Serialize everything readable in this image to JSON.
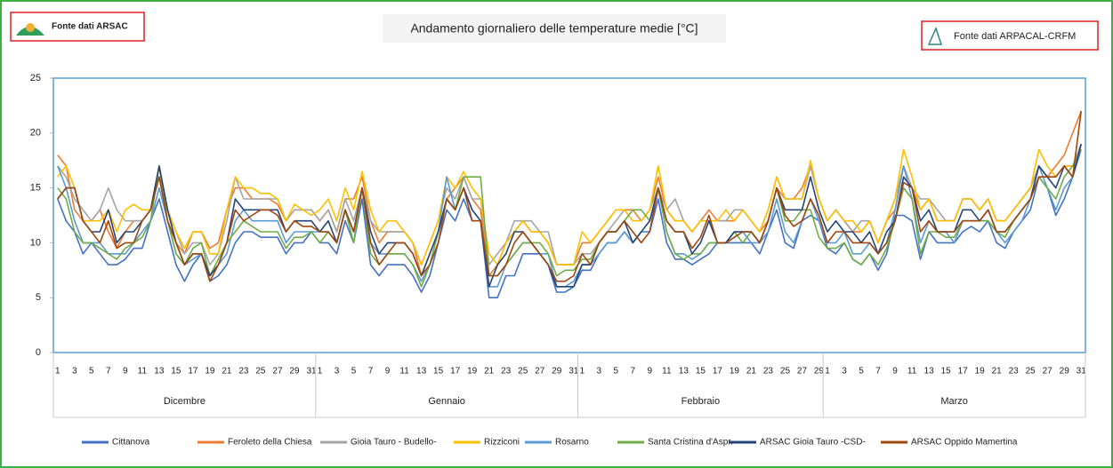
{
  "header": {
    "left_source": "Fonte dati ARSAC",
    "right_source": "Fonte dati ARPACAL-CRFM"
  },
  "chart_data": {
    "type": "line",
    "title": "Andamento giornaliero delle temperature medie [°C]",
    "ylim": [
      0,
      25
    ],
    "yticks": [
      0,
      5,
      10,
      15,
      20,
      25
    ],
    "groups": [
      {
        "name": "Dicembre",
        "categories": [
          "1",
          null,
          "3",
          null,
          "5",
          null,
          "7",
          null,
          "9",
          null,
          "11",
          null,
          "13",
          null,
          "15",
          null,
          "17",
          null,
          "19",
          null,
          "21",
          null,
          "23",
          null,
          "25",
          null,
          "27",
          null,
          "29",
          null,
          "31"
        ]
      },
      {
        "name": "Gennaio",
        "categories": [
          "1",
          null,
          "3",
          null,
          "5",
          null,
          "7",
          null,
          "9",
          null,
          "11",
          null,
          "13",
          null,
          "15",
          null,
          "17",
          null,
          "19",
          null,
          "21",
          null,
          "23",
          null,
          "25",
          null,
          "27",
          null,
          "29",
          null,
          "31"
        ]
      },
      {
        "name": "Febbraio",
        "categories": [
          "1",
          null,
          "3",
          null,
          "5",
          null,
          "7",
          null,
          "9",
          null,
          "11",
          null,
          "13",
          null,
          "15",
          null,
          "17",
          null,
          "19",
          null,
          "21",
          null,
          "23",
          null,
          "25",
          null,
          "27",
          null,
          "29"
        ]
      },
      {
        "name": "Marzo",
        "categories": [
          "1",
          null,
          "3",
          null,
          "5",
          null,
          "7",
          null,
          "9",
          null,
          "11",
          null,
          "13",
          null,
          "15",
          null,
          "17",
          null,
          "19",
          null,
          "21",
          null,
          "23",
          null,
          "25",
          null,
          "27",
          null,
          "29",
          null,
          "31"
        ]
      }
    ],
    "series": [
      {
        "name": "Cittanova",
        "color": "#4472c4",
        "values": [
          14,
          12,
          11,
          9,
          10,
          9,
          8,
          8,
          8.5,
          9.5,
          9.5,
          12,
          14,
          11,
          8,
          6.5,
          8,
          9,
          6.5,
          7,
          8,
          10,
          11,
          11,
          10.5,
          10.5,
          10.5,
          9,
          10,
          10,
          11,
          10,
          10,
          9,
          12,
          10,
          14,
          8,
          7,
          8,
          8,
          8,
          7,
          5.5,
          7,
          10,
          13,
          12,
          14,
          12,
          12,
          5,
          5,
          7,
          7,
          9,
          9,
          9,
          8,
          5.5,
          5.5,
          6,
          7.5,
          7.5,
          9,
          10,
          10,
          11,
          10,
          11,
          11,
          14,
          10,
          8.5,
          8.5,
          8,
          8.5,
          9,
          10,
          10,
          10,
          10,
          10,
          9,
          11,
          13,
          10,
          9.5,
          12,
          12.5,
          12,
          9.5,
          9,
          10,
          8.5,
          8,
          9,
          7.5,
          9,
          12.5,
          12.5,
          12,
          8.5,
          11,
          10,
          10,
          10,
          11,
          11.5,
          11,
          12,
          10,
          9.5,
          11,
          12,
          13,
          16,
          15,
          12.5,
          14,
          16,
          18.5
        ]
      },
      {
        "name": "Feroleto della Chiesa",
        "color": "#ed7d31",
        "values": [
          18,
          17,
          13,
          12,
          12,
          13,
          11,
          9.5,
          11,
          12,
          12,
          13,
          16,
          13,
          10,
          9,
          11,
          11,
          9.5,
          10,
          13,
          15,
          15,
          14,
          14,
          14,
          13.5,
          12,
          13,
          13,
          13,
          12,
          13,
          11,
          14,
          14,
          16,
          12,
          10,
          11,
          11,
          11,
          10,
          7,
          9,
          11,
          14,
          15,
          16,
          14,
          13,
          7,
          8,
          10,
          11,
          12,
          11,
          11,
          10,
          8,
          8,
          8,
          10,
          10,
          11,
          12,
          13,
          13,
          13,
          12,
          13,
          16,
          13,
          12,
          12,
          11,
          12,
          13,
          12,
          12,
          12,
          13,
          12,
          11,
          12,
          15,
          14,
          14,
          15,
          17,
          14,
          12,
          13,
          12,
          11,
          11,
          12,
          10,
          12,
          13,
          17,
          15,
          13,
          14,
          12,
          12,
          12,
          14,
          14,
          13,
          14,
          12,
          12,
          13,
          14,
          15,
          17,
          16,
          17,
          18,
          20,
          22
        ]
      },
      {
        "name": "Gioia Tauro - Budello-",
        "color": "#a5a5a5",
        "values": [
          17,
          16,
          14,
          13,
          12,
          13,
          15,
          13,
          12,
          12,
          12,
          13,
          17,
          13,
          11,
          9,
          10,
          10,
          8,
          9,
          12,
          16,
          14,
          14,
          14,
          14,
          14,
          12,
          13,
          13,
          13,
          12,
          13,
          11,
          14,
          12,
          15,
          12,
          11,
          11,
          11,
          11,
          10,
          8,
          10,
          12,
          15,
          14,
          16,
          14,
          14,
          8,
          9,
          10,
          12,
          12,
          12,
          11,
          11,
          8,
          8,
          8,
          9,
          9,
          10,
          11,
          12,
          13,
          12,
          12,
          13,
          15,
          13,
          14,
          12,
          11,
          12,
          12,
          12,
          12,
          13,
          13,
          12,
          11,
          13,
          16,
          14,
          14,
          14,
          17,
          14,
          12,
          13,
          12,
          11,
          12,
          12,
          10,
          12,
          14,
          17,
          15,
          14,
          14,
          13,
          12,
          12,
          14,
          14,
          13,
          14,
          12,
          12,
          13,
          14,
          15,
          17,
          16,
          16,
          17,
          17,
          19
        ]
      },
      {
        "name": "Rizziconi",
        "color": "#ffc000",
        "values": [
          16,
          17,
          15,
          12,
          12,
          12,
          13,
          11,
          13,
          13.5,
          13,
          13,
          17,
          13,
          11,
          9.5,
          11,
          11,
          9,
          9,
          13,
          16,
          15,
          15,
          14.5,
          14.5,
          14,
          12,
          13.5,
          13,
          12.5,
          13,
          14,
          12,
          15,
          13,
          16.5,
          13,
          11,
          12,
          12,
          11,
          10,
          8,
          10,
          12,
          16,
          15,
          16.5,
          15,
          14,
          9,
          8,
          10,
          11,
          12,
          11,
          11,
          10,
          8,
          8,
          8,
          11,
          10,
          11,
          12,
          13,
          13,
          12,
          12,
          13,
          17,
          13,
          12,
          12,
          11,
          12,
          12,
          12,
          13,
          12,
          13,
          12,
          11,
          13,
          16,
          14,
          14,
          14,
          17.5,
          14,
          12,
          13,
          12,
          12,
          11,
          12,
          10,
          12,
          14,
          18.5,
          16,
          13,
          14,
          12,
          12,
          12,
          14,
          14,
          13,
          14,
          12,
          12,
          13,
          14,
          15,
          18.5,
          17,
          16,
          17,
          17,
          18.5
        ]
      },
      {
        "name": "Rosarno",
        "color": "#5b9bd5",
        "values": [
          17,
          15,
          12,
          10,
          10,
          10,
          9,
          9,
          9,
          10,
          11,
          12,
          15,
          12,
          9,
          8,
          8.5,
          9,
          7,
          8,
          9,
          12,
          13,
          12,
          12,
          12,
          12,
          10,
          11,
          11,
          11,
          11,
          11,
          10,
          13,
          11,
          15,
          10,
          9,
          9,
          9,
          9,
          8,
          6.5,
          8,
          11,
          16,
          13,
          15,
          13,
          12,
          6,
          6,
          8,
          9,
          10,
          10,
          9,
          9,
          6,
          6,
          6.5,
          8,
          8,
          9,
          10,
          10,
          11,
          10,
          11,
          11,
          15,
          11,
          9,
          9,
          8.5,
          9,
          10,
          10,
          10,
          11,
          11,
          10,
          10,
          11,
          14,
          11,
          10,
          12,
          14,
          12,
          10,
          10,
          11,
          9,
          9,
          10,
          9,
          10,
          13,
          17,
          14,
          10,
          12,
          11,
          11,
          10,
          12,
          12,
          12,
          12,
          11,
          10,
          11,
          12,
          14,
          17,
          15,
          13,
          15,
          16,
          19
        ]
      },
      {
        "name": "Santa Cristina d'Aspr.",
        "color": "#70ad47",
        "values": [
          15,
          14,
          11,
          10,
          10,
          9.5,
          9,
          8.5,
          9.5,
          10,
          10.5,
          12,
          17,
          12,
          9,
          8,
          9.5,
          10,
          7,
          8.5,
          10,
          11,
          12,
          11.5,
          11,
          11,
          11,
          9.5,
          10.5,
          10.5,
          11,
          10,
          11,
          10,
          13,
          10,
          15,
          9,
          8,
          9,
          9,
          9,
          8,
          6,
          8,
          11,
          14,
          13,
          16,
          16,
          16,
          7,
          7,
          8,
          9,
          10,
          10,
          10,
          9,
          7,
          7.5,
          7.5,
          8.5,
          8.5,
          10,
          11,
          11,
          12,
          13,
          13,
          12,
          15,
          11,
          9,
          8.5,
          9,
          9,
          10,
          10,
          10,
          11,
          10,
          11,
          10,
          12,
          15,
          12,
          12,
          13,
          13,
          10.5,
          9.5,
          9.5,
          10,
          8.5,
          8,
          9,
          8,
          9.5,
          12,
          15,
          14,
          9,
          11,
          11,
          10.5,
          10.5,
          12,
          12,
          12,
          12,
          11,
          10.5,
          12,
          13,
          14,
          16,
          15,
          14,
          16,
          17,
          18.5
        ]
      },
      {
        "name": "ARSAC Gioia Tauro -CSD-",
        "color": "#264478",
        "values": [
          14,
          15,
          15,
          12,
          11,
          11,
          13,
          10,
          11,
          11,
          12,
          13,
          17,
          13,
          10,
          8,
          9,
          9,
          7,
          8,
          10,
          14,
          13,
          13,
          13,
          13,
          13,
          11,
          12,
          12,
          12,
          11,
          12,
          10,
          13,
          11,
          15,
          11,
          9,
          10,
          10,
          10,
          9,
          7,
          9,
          11,
          14,
          13,
          15,
          13,
          12,
          6,
          8,
          9,
          11,
          11,
          10,
          9,
          8,
          6,
          6,
          6,
          8,
          8,
          10,
          11,
          11,
          12,
          10,
          11,
          12,
          15,
          12,
          11,
          11,
          9,
          10,
          12,
          10,
          10,
          11,
          11,
          11,
          10,
          12,
          15,
          13,
          13,
          13,
          16,
          13,
          11,
          12,
          11,
          11,
          10,
          11,
          9,
          11,
          12,
          16,
          15,
          12,
          13,
          11,
          11,
          11,
          13,
          13,
          12,
          13,
          11,
          11,
          12,
          13,
          14,
          17,
          16,
          15,
          17,
          16,
          19
        ]
      },
      {
        "name": "ARSAC Oppido Mamertina",
        "color": "#9e480e",
        "values": [
          14,
          15,
          15,
          12,
          11,
          10,
          12,
          9.5,
          10,
          10,
          12,
          13,
          16,
          12,
          10,
          8,
          9,
          9,
          6.5,
          8,
          10,
          13,
          12,
          12.5,
          13,
          13,
          12.5,
          11,
          12,
          11.5,
          11.5,
          11,
          11,
          10,
          13,
          11,
          15,
          10,
          8,
          9,
          10,
          10,
          9,
          7,
          8,
          10,
          14,
          13,
          15,
          12,
          12,
          7,
          7,
          8,
          10,
          11,
          10,
          9,
          8,
          6.5,
          6.5,
          7,
          9,
          8,
          10,
          11,
          11,
          12,
          11,
          10,
          11,
          15,
          12,
          11,
          11,
          9.5,
          10.5,
          12.5,
          10,
          10,
          10.5,
          11,
          11,
          10,
          12,
          15,
          12.5,
          11.5,
          12,
          14,
          12.5,
          10,
          11,
          11,
          10,
          10,
          10,
          9,
          10,
          12,
          15.5,
          15,
          11,
          12,
          11,
          11,
          11,
          12,
          12,
          12,
          13,
          11,
          11,
          12,
          13,
          14,
          16,
          16,
          16,
          17,
          16,
          22
        ]
      }
    ]
  }
}
